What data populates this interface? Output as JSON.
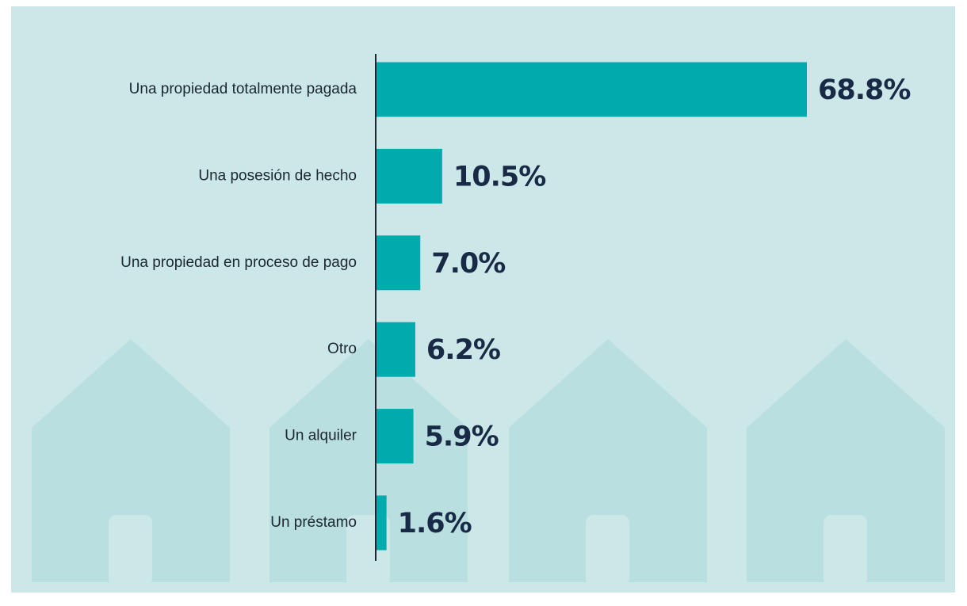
{
  "chart_data": {
    "type": "bar",
    "orientation": "horizontal",
    "categories": [
      "Una propiedad totalmente pagada",
      "Una posesión de hecho",
      "Una propiedad en proceso de pago",
      "Otro",
      "Un alquiler",
      "Un préstamo"
    ],
    "values": [
      68.8,
      10.5,
      7.0,
      6.2,
      5.9,
      1.6
    ],
    "value_labels": [
      "68.8%",
      "10.5%",
      "7.0%",
      "6.2%",
      "5.9%",
      "1.6%"
    ],
    "color": "#00abae"
  }
}
